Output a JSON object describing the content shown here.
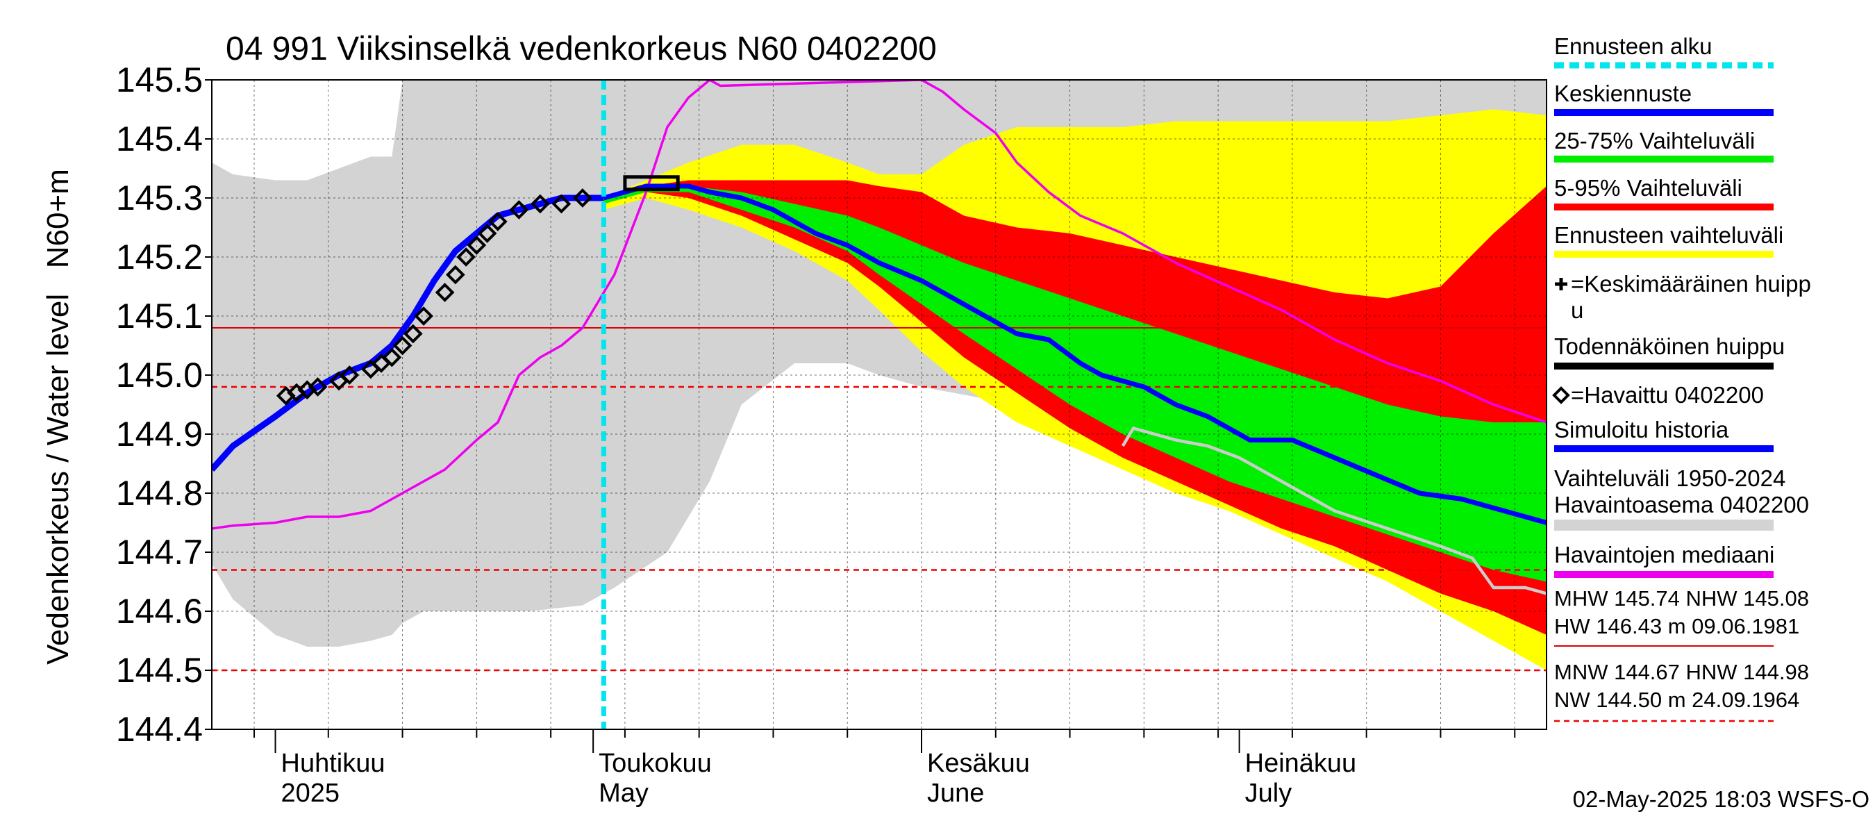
{
  "chart_data": {
    "type": "area",
    "title": "04 991 Viiksinselkä vedenkorkeus N60 0402200",
    "ylabel": "Vedenkorkeus / Water level   N60+m",
    "ylim": [
      144.4,
      145.5
    ],
    "yticks": [
      144.4,
      144.5,
      144.6,
      144.7,
      144.8,
      144.9,
      145.0,
      145.1,
      145.2,
      145.3,
      145.4,
      145.5
    ],
    "xlim": [
      "2025-03-26",
      "2025-07-30"
    ],
    "month_labels": [
      {
        "date": "2025-04-01",
        "line1": "Huhtikuu",
        "line2": "2025"
      },
      {
        "date": "2025-05-01",
        "line1": "Toukokuu",
        "line2": "May"
      },
      {
        "date": "2025-06-01",
        "line1": "Kesäkuu",
        "line2": "June"
      },
      {
        "date": "2025-07-01",
        "line1": "Heinäkuu",
        "line2": "July"
      }
    ],
    "forecast_start": "2025-05-02",
    "reference_lines": [
      {
        "name": "MHW",
        "value": 145.74
      },
      {
        "name": "NHW",
        "value": 145.08
      },
      {
        "name": "HW",
        "value": 146.43
      },
      {
        "name": "MNW",
        "value": 144.67
      },
      {
        "name": "HNW",
        "value": 144.98
      },
      {
        "name": "NW",
        "value": 144.5
      }
    ],
    "series": [
      {
        "name": "Vaihteluväli 1950-2024 Havaintoasema 0402200",
        "color": "#d3d3d3",
        "x": [
          "2025-03-26",
          "2025-03-28",
          "2025-04-01",
          "2025-04-04",
          "2025-04-07",
          "2025-04-10",
          "2025-04-12",
          "2025-04-13",
          "2025-04-15",
          "2025-04-20",
          "2025-04-25",
          "2025-04-30",
          "2025-05-03",
          "2025-05-08",
          "2025-05-12",
          "2025-05-15",
          "2025-05-20",
          "2025-05-25",
          "2025-05-28",
          "2025-06-01",
          "2025-06-04",
          "2025-06-07",
          "2025-06-10",
          "2025-06-15",
          "2025-06-20",
          "2025-06-25",
          "2025-06-30",
          "2025-07-05",
          "2025-07-10",
          "2025-07-15",
          "2025-07-20",
          "2025-07-25",
          "2025-07-30"
        ],
        "upper": [
          145.36,
          145.34,
          145.33,
          145.33,
          145.35,
          145.37,
          145.37,
          145.5,
          145.5,
          145.5,
          145.5,
          145.5,
          145.5,
          145.5,
          145.5,
          145.5,
          145.5,
          145.5,
          145.5,
          145.5,
          145.5,
          145.5,
          145.5,
          145.5,
          145.5,
          145.5,
          145.5,
          145.5,
          145.5,
          145.5,
          145.5,
          145.5,
          145.5
        ],
        "lower": [
          144.68,
          144.62,
          144.56,
          144.54,
          144.54,
          144.55,
          144.56,
          144.58,
          144.6,
          144.6,
          144.6,
          144.61,
          144.64,
          144.7,
          144.82,
          144.95,
          145.02,
          145.02,
          145.0,
          144.98,
          144.97,
          144.96,
          144.94,
          144.9,
          144.86,
          144.83,
          144.8,
          144.76,
          144.72,
          144.68,
          144.64,
          144.6,
          144.57
        ]
      },
      {
        "name": "Ennusteen vaihteluväli",
        "color": "#ffff00",
        "x": [
          "2025-05-02",
          "2025-05-06",
          "2025-05-10",
          "2025-05-15",
          "2025-05-20",
          "2025-05-25",
          "2025-05-28",
          "2025-06-01",
          "2025-06-05",
          "2025-06-10",
          "2025-06-15",
          "2025-06-20",
          "2025-06-25",
          "2025-06-30",
          "2025-07-05",
          "2025-07-10",
          "2025-07-15",
          "2025-07-20",
          "2025-07-25",
          "2025-07-30"
        ],
        "upper": [
          145.3,
          145.33,
          145.36,
          145.39,
          145.39,
          145.36,
          145.34,
          145.34,
          145.39,
          145.42,
          145.42,
          145.42,
          145.43,
          145.43,
          145.43,
          145.43,
          145.43,
          145.44,
          145.45,
          145.44
        ],
        "lower": [
          145.28,
          145.3,
          145.28,
          145.25,
          145.21,
          145.16,
          145.11,
          145.04,
          144.98,
          144.92,
          144.88,
          144.84,
          144.8,
          144.77,
          144.73,
          144.69,
          144.65,
          144.6,
          144.55,
          144.5
        ]
      },
      {
        "name": "5-95% Vaihteluväli",
        "color": "#ff0000",
        "x": [
          "2025-05-02",
          "2025-05-06",
          "2025-05-10",
          "2025-05-15",
          "2025-05-20",
          "2025-05-25",
          "2025-05-28",
          "2025-06-01",
          "2025-06-05",
          "2025-06-10",
          "2025-06-15",
          "2025-06-20",
          "2025-06-25",
          "2025-06-30",
          "2025-07-05",
          "2025-07-10",
          "2025-07-15",
          "2025-07-20",
          "2025-07-25",
          "2025-07-30"
        ],
        "upper": [
          145.3,
          145.32,
          145.33,
          145.33,
          145.33,
          145.33,
          145.32,
          145.31,
          145.27,
          145.25,
          145.24,
          145.22,
          145.2,
          145.18,
          145.16,
          145.14,
          145.13,
          145.15,
          145.24,
          145.32
        ],
        "lower": [
          145.29,
          145.31,
          145.3,
          145.27,
          145.23,
          145.19,
          145.15,
          145.09,
          145.03,
          144.97,
          144.91,
          144.86,
          144.82,
          144.78,
          144.74,
          144.71,
          144.67,
          144.63,
          144.6,
          144.56
        ]
      },
      {
        "name": "25-75% Vaihteluväli",
        "color": "#00ee00",
        "x": [
          "2025-05-02",
          "2025-05-06",
          "2025-05-10",
          "2025-05-15",
          "2025-05-20",
          "2025-05-25",
          "2025-05-28",
          "2025-06-01",
          "2025-06-05",
          "2025-06-10",
          "2025-06-15",
          "2025-06-20",
          "2025-06-25",
          "2025-06-30",
          "2025-07-05",
          "2025-07-10",
          "2025-07-15",
          "2025-07-20",
          "2025-07-25",
          "2025-07-30"
        ],
        "upper": [
          145.3,
          145.32,
          145.32,
          145.31,
          145.29,
          145.27,
          145.25,
          145.22,
          145.19,
          145.16,
          145.13,
          145.1,
          145.07,
          145.04,
          145.01,
          144.98,
          144.95,
          144.93,
          144.92,
          144.92
        ],
        "lower": [
          145.29,
          145.31,
          145.31,
          145.28,
          145.25,
          145.21,
          145.17,
          145.12,
          145.07,
          145.01,
          144.95,
          144.9,
          144.86,
          144.82,
          144.79,
          144.76,
          144.73,
          144.7,
          144.67,
          144.65
        ]
      },
      {
        "name": "Havaintojen mediaani",
        "color": "#ee00ee",
        "x": [
          "2025-03-26",
          "2025-03-28",
          "2025-04-01",
          "2025-04-04",
          "2025-04-07",
          "2025-04-10",
          "2025-04-12",
          "2025-04-14",
          "2025-04-17",
          "2025-04-20",
          "2025-04-22",
          "2025-04-24",
          "2025-04-26",
          "2025-04-28",
          "2025-04-30",
          "2025-05-03",
          "2025-05-06",
          "2025-05-08",
          "2025-05-10",
          "2025-05-12",
          "2025-05-13",
          "2025-06-01",
          "2025-06-03",
          "2025-06-05",
          "2025-06-08",
          "2025-06-10",
          "2025-06-13",
          "2025-06-16",
          "2025-06-20",
          "2025-06-25",
          "2025-06-30",
          "2025-07-05",
          "2025-07-10",
          "2025-07-15",
          "2025-07-20",
          "2025-07-25",
          "2025-07-30"
        ],
        "values": [
          144.74,
          144.745,
          144.75,
          144.76,
          144.76,
          144.77,
          144.79,
          144.81,
          144.84,
          144.89,
          144.92,
          145.0,
          145.03,
          145.05,
          145.08,
          145.17,
          145.31,
          145.42,
          145.47,
          145.5,
          145.49,
          145.5,
          145.48,
          145.45,
          145.41,
          145.36,
          145.31,
          145.27,
          145.24,
          145.19,
          145.15,
          145.11,
          145.06,
          145.02,
          144.99,
          144.95,
          144.92
        ]
      },
      {
        "name": "Simuloitu historia",
        "color": "#0000ff",
        "x": [
          "2025-03-26",
          "2025-03-28",
          "2025-04-01",
          "2025-04-04",
          "2025-04-07",
          "2025-04-10",
          "2025-04-12",
          "2025-04-14",
          "2025-04-16",
          "2025-04-18",
          "2025-04-20",
          "2025-04-22",
          "2025-04-24",
          "2025-04-26",
          "2025-04-28",
          "2025-04-30",
          "2025-05-02"
        ],
        "values": [
          144.84,
          144.88,
          144.93,
          144.97,
          145.0,
          145.02,
          145.05,
          145.1,
          145.16,
          145.21,
          145.24,
          145.27,
          145.28,
          145.29,
          145.3,
          145.3,
          145.3
        ]
      },
      {
        "name": "Keskiennuste",
        "color": "#0000ff",
        "x": [
          "2025-05-02",
          "2025-05-04",
          "2025-05-06",
          "2025-05-08",
          "2025-05-10",
          "2025-05-12",
          "2025-05-15",
          "2025-05-18",
          "2025-05-20",
          "2025-05-22",
          "2025-05-25",
          "2025-05-28",
          "2025-06-01",
          "2025-06-04",
          "2025-06-07",
          "2025-06-10",
          "2025-06-13",
          "2025-06-16",
          "2025-06-18",
          "2025-06-20",
          "2025-06-22",
          "2025-06-25",
          "2025-06-28",
          "2025-06-30",
          "2025-07-02",
          "2025-07-04",
          "2025-07-06",
          "2025-07-10",
          "2025-07-14",
          "2025-07-18",
          "2025-07-22",
          "2025-07-26",
          "2025-07-30"
        ],
        "values": [
          145.3,
          145.31,
          145.32,
          145.32,
          145.32,
          145.31,
          145.3,
          145.28,
          145.26,
          145.24,
          145.22,
          145.19,
          145.16,
          145.13,
          145.1,
          145.07,
          145.06,
          145.02,
          145.0,
          144.99,
          144.98,
          144.95,
          144.93,
          144.91,
          144.89,
          144.89,
          144.89,
          144.86,
          144.83,
          144.8,
          144.79,
          144.77,
          144.75
        ]
      },
      {
        "name": "Havaintojen harmaa jatko",
        "color": "#cccccc",
        "x": [
          "2025-06-20",
          "2025-06-21",
          "2025-06-25",
          "2025-06-28",
          "2025-07-01",
          "2025-07-05",
          "2025-07-10",
          "2025-07-15",
          "2025-07-20",
          "2025-07-23",
          "2025-07-25",
          "2025-07-28",
          "2025-07-30"
        ],
        "values": [
          144.88,
          144.91,
          144.89,
          144.88,
          144.86,
          144.82,
          144.77,
          144.74,
          144.71,
          144.69,
          144.64,
          144.64,
          144.63
        ]
      }
    ],
    "observed": {
      "name": "=Havaittu 0402200",
      "x": [
        "2025-04-02",
        "2025-04-03",
        "2025-04-04",
        "2025-04-05",
        "2025-04-07",
        "2025-04-08",
        "2025-04-10",
        "2025-04-11",
        "2025-04-12",
        "2025-04-13",
        "2025-04-14",
        "2025-04-15",
        "2025-04-17",
        "2025-04-18",
        "2025-04-19",
        "2025-04-20",
        "2025-04-21",
        "2025-04-22",
        "2025-04-24",
        "2025-04-26",
        "2025-04-28",
        "2025-04-30"
      ],
      "values": [
        144.965,
        144.97,
        144.975,
        144.98,
        144.99,
        145.0,
        145.01,
        145.02,
        145.03,
        145.05,
        145.07,
        145.1,
        145.14,
        145.17,
        145.2,
        145.22,
        145.24,
        145.26,
        145.28,
        145.29,
        145.29,
        145.3
      ]
    },
    "probable_peak": {
      "name": "Todennäköinen huippu",
      "x_start": "2025-05-04",
      "x_end": "2025-05-09",
      "value": 145.325
    }
  },
  "legend": {
    "items": [
      {
        "label": "Ennusteen alku",
        "color": "#00e5ee",
        "kind": "dashed"
      },
      {
        "label": "Keskiennuste",
        "color": "#0000ff",
        "kind": "line"
      },
      {
        "label": "25-75% Vaihteluväli",
        "color": "#00ee00",
        "kind": "line"
      },
      {
        "label": "5-95% Vaihteluväli",
        "color": "#ff0000",
        "kind": "line"
      },
      {
        "label": "Ennusteen vaihteluväli",
        "color": "#ffff00",
        "kind": "line"
      },
      {
        "label": "=Keskimääräinen huipp",
        "label2": "u",
        "color": "#000000",
        "kind": "plus"
      },
      {
        "label": "Todennäköinen huippu",
        "color": "#000000",
        "kind": "line"
      },
      {
        "label": "=Havaittu 0402200",
        "color": "#000000",
        "kind": "diamond"
      },
      {
        "label": "Simuloitu historia",
        "color": "#0000ff",
        "kind": "line"
      },
      {
        "label": "Vaihteluväli 1950-2024",
        "label2": " Havaintoasema 0402200",
        "color": "#d3d3d3",
        "kind": "line"
      },
      {
        "label": "Havaintojen mediaani",
        "color": "#ee00ee",
        "kind": "line"
      }
    ],
    "stats1_line1": "MHW 145.74 NHW 145.08",
    "stats1_line2": "HW 146.43 m 09.06.1981",
    "stats2_line1": "MNW 144.67 HNW 144.98",
    "stats2_line2": "NW 144.50 m 24.09.1964"
  },
  "footer": {
    "timestamp": "02-May-2025 18:03 WSFS-O"
  }
}
